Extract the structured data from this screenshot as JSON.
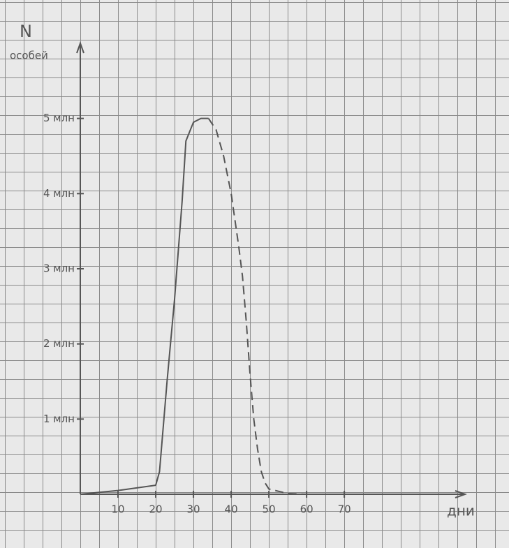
{
  "chart_data": {
    "type": "line",
    "ylabel": [
      "N",
      "особей"
    ],
    "xlabel": "дни",
    "xlim": [
      0,
      102
    ],
    "xticks": [
      10,
      20,
      30,
      40,
      50,
      60,
      70
    ],
    "ylim": [
      0,
      6
    ],
    "yticks": [
      {
        "value": 1,
        "label": "1 млн"
      },
      {
        "value": 2,
        "label": "2 млн"
      },
      {
        "value": 3,
        "label": "3 млн"
      },
      {
        "value": 4,
        "label": "4 млн"
      },
      {
        "value": 5,
        "label": "5 млн"
      }
    ],
    "series": [
      {
        "color": "#555555",
        "dashed": false,
        "x": [
          0,
          10,
          20,
          21,
          23,
          25,
          27,
          28,
          30,
          32,
          34
        ],
        "values": [
          0,
          0.05,
          0.12,
          0.3,
          1.5,
          2.6,
          3.9,
          4.7,
          4.95,
          5,
          5
        ]
      },
      {
        "color": "#555555",
        "dashed": true,
        "x": [
          34,
          36,
          38,
          40,
          42,
          43,
          44,
          45,
          46,
          47,
          48,
          49,
          50,
          55,
          60
        ],
        "values": [
          5,
          4.85,
          4.5,
          4.0,
          3.3,
          2.9,
          2.3,
          1.6,
          1.0,
          0.6,
          0.3,
          0.15,
          0.07,
          0.01,
          0
        ]
      }
    ]
  }
}
